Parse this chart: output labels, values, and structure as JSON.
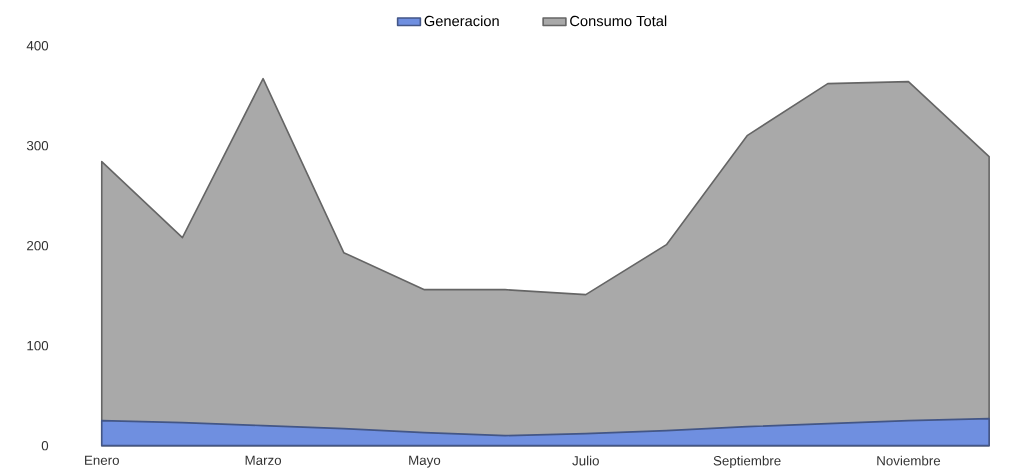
{
  "chart_data": {
    "type": "area",
    "categories": [
      "Enero",
      null,
      "Marzo",
      null,
      "Mayo",
      null,
      "Julio",
      null,
      "Septiembre",
      null,
      "Noviembre",
      null
    ],
    "series": [
      {
        "name": "Consumo Total",
        "color": "#a9a9a9",
        "values": [
          284,
          208,
          367,
          193,
          156,
          156,
          151,
          201,
          310,
          362,
          364,
          289
        ]
      },
      {
        "name": "Generacion",
        "color": "#6f8fe0",
        "values": [
          25,
          23,
          20,
          17,
          13,
          10,
          12,
          15,
          19,
          22,
          25,
          27
        ]
      }
    ],
    "ylim": [
      0,
      400
    ],
    "yticks": [
      0,
      100,
      200,
      300,
      400
    ],
    "legend": "top"
  }
}
